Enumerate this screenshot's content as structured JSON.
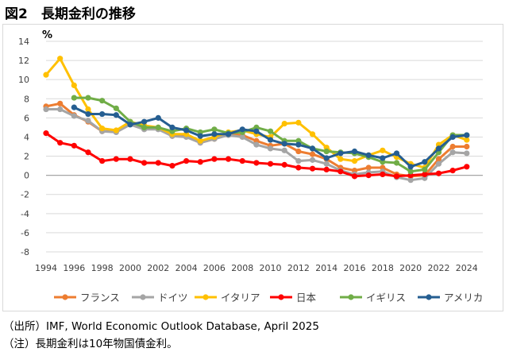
{
  "title": "図2　長期金利の推移",
  "notes": {
    "source": "（出所）IMF, World Economic Outlook Database, April 2025",
    "note": "（注）長期金利は10年物国債金利。"
  },
  "chart_data": {
    "type": "line",
    "title": "図2　長期金利の推移",
    "ylabel": "%",
    "xlabel": "",
    "ylim": [
      -8,
      14
    ],
    "yticks": [
      -8,
      -6,
      -4,
      -2,
      0,
      2,
      4,
      6,
      8,
      10,
      12,
      14
    ],
    "x": [
      1994,
      1995,
      1996,
      1997,
      1998,
      1999,
      2000,
      2001,
      2002,
      2003,
      2004,
      2005,
      2006,
      2007,
      2008,
      2009,
      2010,
      2011,
      2012,
      2013,
      2014,
      2015,
      2016,
      2017,
      2018,
      2019,
      2020,
      2021,
      2022,
      2023,
      2024
    ],
    "xtick_labels": [
      "1994",
      "1996",
      "1998",
      "2000",
      "2002",
      "2004",
      "2006",
      "2008",
      "2010",
      "2012",
      "2014",
      "2016",
      "2018",
      "2020",
      "2022",
      "2024"
    ],
    "grid": true,
    "legend_position": "bottom",
    "series": [
      {
        "name": "フランス",
        "color": "#ED7D31",
        "values": [
          7.2,
          7.5,
          6.3,
          5.6,
          4.6,
          4.6,
          5.4,
          4.9,
          4.9,
          4.1,
          4.1,
          3.4,
          3.8,
          4.3,
          4.2,
          3.6,
          3.1,
          3.3,
          2.5,
          2.2,
          1.7,
          0.8,
          0.5,
          0.8,
          0.8,
          0.1,
          -0.1,
          0.0,
          1.7,
          3.0,
          3.0
        ]
      },
      {
        "name": "ドイツ",
        "color": "#A5A5A5",
        "values": [
          6.9,
          6.9,
          6.2,
          5.7,
          4.6,
          4.5,
          5.3,
          4.8,
          4.8,
          4.1,
          4.0,
          3.4,
          3.8,
          4.2,
          4.0,
          3.2,
          2.8,
          2.6,
          1.5,
          1.6,
          1.2,
          0.5,
          0.1,
          0.3,
          0.4,
          -0.2,
          -0.5,
          -0.3,
          1.2,
          2.4,
          2.3
        ]
      },
      {
        "name": "イタリア",
        "color": "#FFC000",
        "values": [
          10.5,
          12.2,
          9.4,
          6.9,
          4.9,
          4.7,
          5.6,
          5.2,
          5.0,
          4.3,
          4.3,
          3.6,
          4.0,
          4.5,
          4.7,
          4.3,
          4.0,
          5.4,
          5.5,
          4.3,
          2.9,
          1.7,
          1.5,
          2.1,
          2.6,
          1.9,
          1.2,
          0.8,
          3.2,
          4.2,
          3.7
        ]
      },
      {
        "name": "日本",
        "color": "#FF0000",
        "values": [
          4.4,
          3.4,
          3.1,
          2.4,
          1.5,
          1.7,
          1.7,
          1.3,
          1.3,
          1.0,
          1.5,
          1.4,
          1.7,
          1.7,
          1.5,
          1.3,
          1.2,
          1.1,
          0.8,
          0.7,
          0.6,
          0.4,
          -0.1,
          0.0,
          0.1,
          -0.1,
          0.0,
          0.1,
          0.2,
          0.5,
          0.9
        ]
      },
      {
        "name": "イギリス",
        "color": "#70AD47",
        "values": [
          null,
          null,
          8.1,
          8.1,
          7.8,
          7.0,
          5.6,
          5.0,
          5.0,
          4.6,
          4.9,
          4.5,
          4.8,
          4.4,
          4.5,
          5.0,
          4.6,
          3.6,
          3.6,
          2.8,
          2.5,
          2.4,
          2.3,
          1.9,
          1.4,
          1.3,
          0.4,
          0.6,
          2.4,
          4.2,
          4.2
        ]
      },
      {
        "name": "アメリカ",
        "color": "#255E91",
        "values": [
          null,
          null,
          7.1,
          6.4,
          6.4,
          6.3,
          5.3,
          5.6,
          6.0,
          5.0,
          4.7,
          4.1,
          4.3,
          4.3,
          4.8,
          4.6,
          3.7,
          3.3,
          3.2,
          2.8,
          1.8,
          2.3,
          2.5,
          2.1,
          1.8,
          2.3,
          0.9,
          1.4,
          2.8,
          4.0,
          4.2
        ]
      }
    ]
  }
}
